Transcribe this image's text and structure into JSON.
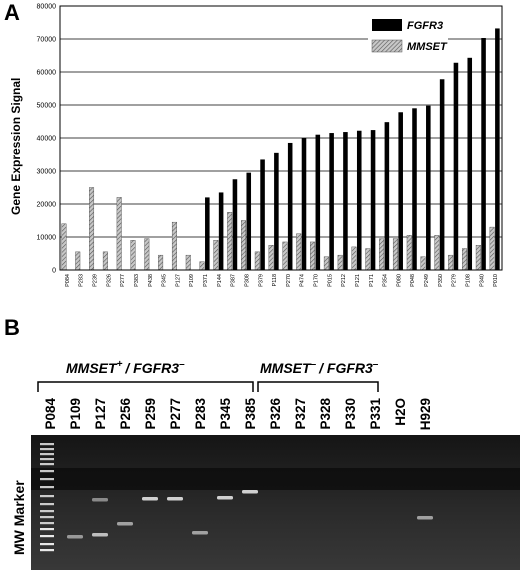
{
  "panel_a_label": "A",
  "panel_b_label": "B",
  "chart_data": {
    "type": "bar",
    "ylabel": "Gene   Expression Signal",
    "ylim": [
      0,
      80000
    ],
    "yticks": [
      "0",
      "10000",
      "20000",
      "30000",
      "40000",
      "50000",
      "60000",
      "70000",
      "80000"
    ],
    "grid": true,
    "legend_position": "top-right",
    "categories": [
      "P084",
      "P283",
      "P239",
      "P326",
      "P277",
      "P383",
      "P438",
      "P345",
      "P127",
      "P109",
      "P371",
      "P144",
      "P387",
      "P308",
      "P379",
      "P118",
      "P270",
      "P474",
      "P170",
      "P015",
      "P212",
      "P121",
      "P171",
      "P354",
      "P080",
      "P048",
      "P249",
      "P350",
      "P279",
      "P108",
      "P340",
      "P010"
    ],
    "series": [
      {
        "name": "FGFR3",
        "color": "#000000",
        "values": [
          0,
          0,
          0,
          0,
          0,
          0,
          0,
          0,
          0,
          0,
          22000,
          23500,
          27500,
          29500,
          33500,
          35500,
          38500,
          40000,
          41000,
          41500,
          41800,
          42200,
          42400,
          44800,
          47800,
          49000,
          49800,
          57800,
          62800,
          64300,
          70300,
          73200
        ]
      },
      {
        "name": "MMSET",
        "color": "#9a9a9a",
        "values": [
          14000,
          5500,
          25000,
          5500,
          22000,
          9000,
          9500,
          4500,
          14500,
          4500,
          2500,
          9000,
          17500,
          15000,
          5500,
          7500,
          8500,
          11000,
          8500,
          4000,
          4500,
          7000,
          6500,
          9500,
          9500,
          10500,
          4000,
          10500,
          4500,
          6500,
          7500,
          13000
        ]
      }
    ]
  },
  "gel": {
    "marker_label": "MW Marker",
    "group1_label": "MMSET",
    "group1_sup": "+",
    "group1_rest": "/ FGFR3",
    "group1_sup2": "–",
    "group2_label": "MMSET",
    "group2_sup": "–",
    "group2_rest": "/ FGFR3",
    "group2_sup2": "–",
    "lanes": [
      "P084",
      "P109",
      "P127",
      "P256",
      "P259",
      "P277",
      "P283",
      "P345",
      "P385",
      "P326",
      "P327",
      "P328",
      "P330",
      "P331",
      "H2O",
      "H929"
    ]
  }
}
